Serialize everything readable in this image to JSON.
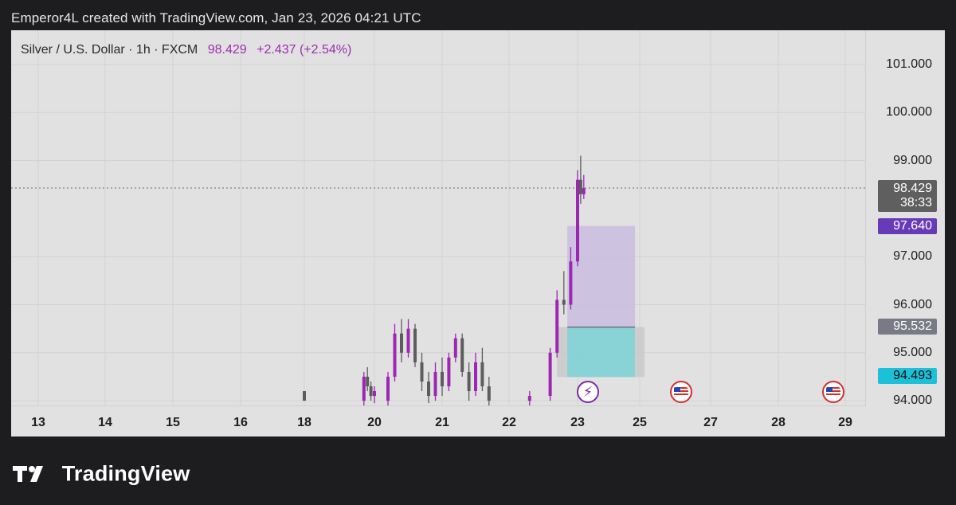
{
  "caption": "Emperor4L created with TradingView.com, Jan 23, 2026 04:21 UTC",
  "brand": {
    "name": "TradingView",
    "logo_icon": "tradingview-logo-icon"
  },
  "legend": {
    "symbol": "Silver / U.S. Dollar · 1h · FXCM",
    "price": "98.429",
    "change": "+2.437 (+2.54%)"
  },
  "price_tags": {
    "last_price": "98.429",
    "countdown": "38:33",
    "target": "97.640",
    "entry": "95.532",
    "stop": "94.493"
  },
  "events": [
    {
      "icon": "lightning-icon",
      "day": "23"
    },
    {
      "icon": "us-flag-icon",
      "day": "26"
    },
    {
      "icon": "us-flag-icon",
      "day": "28.8"
    }
  ],
  "colors": {
    "bull": "#9c27b0",
    "bear": "#5d5d5d",
    "profit_zone": "#c9bde0",
    "loss_zone": "#7fd0d4",
    "price_line": "#6b6b6b"
  },
  "chart_data": {
    "type": "candlestick",
    "title": "Silver / U.S. Dollar · 1h · FXCM",
    "x_ticks": [
      "13",
      "14",
      "15",
      "16",
      "18",
      "20",
      "21",
      "22",
      "23",
      "25",
      "27",
      "28",
      "29"
    ],
    "y_ticks": [
      "101.000",
      "100.000",
      "99.000",
      "97.000",
      "96.000",
      "95.000",
      "94.000"
    ],
    "ylim": [
      93.9,
      101.5
    ],
    "last_price": 98.429,
    "position": {
      "entry": 95.532,
      "target": 97.64,
      "stop": 94.493
    },
    "candles": [
      [
        18,
        94.2,
        94.15,
        94.05,
        94.0
      ],
      [
        19.7,
        94.0,
        94.6,
        93.9,
        94.5
      ],
      [
        19.8,
        94.5,
        94.7,
        94.2,
        94.3
      ],
      [
        19.9,
        94.3,
        94.4,
        94.0,
        94.1
      ],
      [
        20.0,
        94.1,
        94.3,
        93.95,
        94.2
      ],
      [
        20.2,
        94.0,
        94.6,
        93.9,
        94.5
      ],
      [
        20.3,
        94.5,
        95.6,
        94.4,
        95.4
      ],
      [
        20.4,
        95.4,
        95.7,
        94.8,
        95.0
      ],
      [
        20.5,
        95.0,
        95.7,
        94.9,
        95.5
      ],
      [
        20.6,
        95.5,
        95.6,
        94.7,
        94.8
      ],
      [
        20.7,
        94.8,
        95.0,
        94.2,
        94.4
      ],
      [
        20.8,
        94.4,
        94.6,
        93.95,
        94.1
      ],
      [
        20.9,
        94.1,
        94.8,
        94.0,
        94.6
      ],
      [
        21.0,
        94.6,
        94.9,
        94.1,
        94.3
      ],
      [
        21.1,
        94.3,
        95.0,
        94.2,
        94.9
      ],
      [
        21.2,
        94.9,
        95.4,
        94.8,
        95.3
      ],
      [
        21.3,
        95.3,
        95.4,
        94.5,
        94.6
      ],
      [
        21.4,
        94.6,
        94.8,
        94.0,
        94.2
      ],
      [
        21.5,
        94.2,
        95.0,
        94.1,
        94.8
      ],
      [
        21.6,
        94.8,
        95.1,
        94.2,
        94.3
      ],
      [
        21.7,
        94.3,
        94.5,
        93.9,
        94.0
      ],
      [
        22.3,
        94.0,
        94.2,
        93.9,
        94.1
      ],
      [
        22.6,
        94.1,
        95.1,
        94.0,
        95.0
      ],
      [
        22.7,
        95.0,
        96.3,
        94.9,
        96.1
      ],
      [
        22.8,
        96.1,
        96.7,
        95.8,
        96.0
      ],
      [
        22.9,
        96.0,
        97.2,
        95.9,
        96.9
      ],
      [
        23.0,
        96.9,
        98.8,
        96.8,
        98.6
      ],
      [
        23.1,
        98.6,
        99.1,
        98.1,
        98.3
      ],
      [
        23.2,
        98.3,
        98.7,
        98.2,
        98.429
      ]
    ]
  }
}
